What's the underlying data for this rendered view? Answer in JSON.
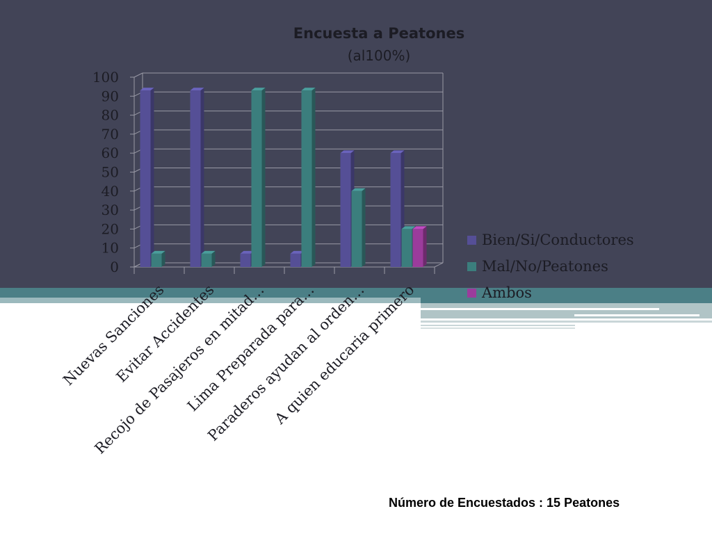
{
  "chart_data": {
    "type": "bar",
    "title": "Encuesta a Peatones",
    "subtitle": "(al100%)",
    "categories": [
      "Nuevas Sanciones",
      "Evitar Accidentes",
      "Recojo de Pasajeros en mitad…",
      "Lima Preparada para…",
      "Paraderos ayudan al orden…",
      "A quien educaria primero"
    ],
    "series": [
      {
        "name": "Bien/Si/Conductores",
        "color": "#554f96",
        "values": [
          93,
          93,
          7,
          7,
          60,
          60
        ]
      },
      {
        "name": "Mal/No/Peatones",
        "color": "#3b7e7d",
        "values": [
          7,
          7,
          93,
          93,
          40,
          20
        ]
      },
      {
        "name": "Ambos",
        "color": "#9b3c9c",
        "values": [
          0,
          0,
          0,
          0,
          0,
          20
        ]
      }
    ],
    "yticks": [
      "0",
      "10",
      "20",
      "30",
      "40",
      "50",
      "60",
      "70",
      "80",
      "90",
      "100"
    ],
    "ylim": [
      0,
      100
    ],
    "grid": true,
    "legend_position": "right"
  },
  "footnote": "Número de Encuestados : 15 Peatones"
}
